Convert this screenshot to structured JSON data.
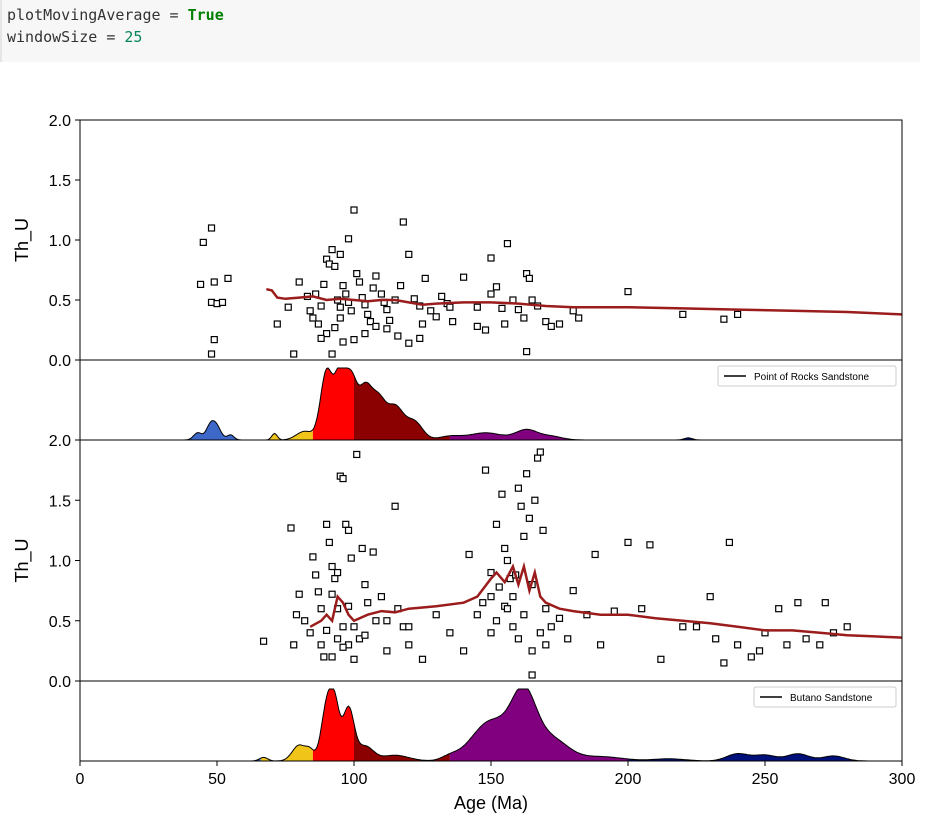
{
  "code": {
    "line1": {
      "var": "plotMovingAverage",
      "op": " = ",
      "val": "True"
    },
    "line2": {
      "var": "windowSize",
      "op": " = ",
      "val": "25"
    }
  },
  "colors": {
    "moving_average": "#9b1c1c",
    "kde_bands": [
      {
        "from": 0,
        "to": 66,
        "color": "#3e68c8"
      },
      {
        "from": 66,
        "to": 85,
        "color": "#f0c419"
      },
      {
        "from": 85,
        "to": 100,
        "color": "#ff0000"
      },
      {
        "from": 100,
        "to": 135,
        "color": "#8b0000"
      },
      {
        "from": 135,
        "to": 200,
        "color": "#800080"
      },
      {
        "from": 200,
        "to": 300,
        "color": "#00107a"
      }
    ]
  },
  "chart_data": [
    {
      "type": "scatter",
      "name": "Point of Rocks Sandstone",
      "ylabel": "Th_U",
      "xlim": [
        0,
        300
      ],
      "ylim": [
        0,
        2.0
      ],
      "yticks": [
        "0.0",
        "0.5",
        "1.0",
        "1.5",
        "2.0"
      ],
      "legend_label": "Point of Rocks Sandstone",
      "legend_placement": "upper-right of KDE panel",
      "moving_average": {
        "x": [
          68,
          70,
          72,
          75,
          80,
          85,
          90,
          95,
          100,
          105,
          110,
          115,
          120,
          125,
          130,
          140,
          150,
          160,
          170,
          180,
          200,
          220,
          240,
          260,
          280,
          300
        ],
        "y": [
          0.59,
          0.58,
          0.52,
          0.51,
          0.52,
          0.53,
          0.5,
          0.51,
          0.5,
          0.49,
          0.5,
          0.5,
          0.48,
          0.46,
          0.47,
          0.48,
          0.48,
          0.47,
          0.45,
          0.44,
          0.44,
          0.43,
          0.42,
          0.41,
          0.4,
          0.38
        ]
      },
      "points": [
        [
          45,
          0.98
        ],
        [
          48,
          1.1
        ],
        [
          44,
          0.63
        ],
        [
          49,
          0.65
        ],
        [
          48,
          0.48
        ],
        [
          50,
          0.47
        ],
        [
          52,
          0.48
        ],
        [
          54,
          0.68
        ],
        [
          49,
          0.17
        ],
        [
          48,
          0.05
        ],
        [
          72,
          0.3
        ],
        [
          76,
          0.44
        ],
        [
          80,
          0.65
        ],
        [
          83,
          0.53
        ],
        [
          84,
          0.41
        ],
        [
          86,
          0.55
        ],
        [
          88,
          0.45
        ],
        [
          87,
          0.3
        ],
        [
          89,
          0.63
        ],
        [
          90,
          0.84
        ],
        [
          91,
          0.8
        ],
        [
          92,
          0.92
        ],
        [
          93,
          0.78
        ],
        [
          94,
          0.5
        ],
        [
          95,
          0.44
        ],
        [
          95,
          0.88
        ],
        [
          96,
          0.62
        ],
        [
          97,
          0.55
        ],
        [
          98,
          0.48
        ],
        [
          99,
          0.41
        ],
        [
          100,
          1.25
        ],
        [
          98,
          1.01
        ],
        [
          101,
          0.72
        ],
        [
          102,
          0.65
        ],
        [
          103,
          0.52
        ],
        [
          104,
          0.46
        ],
        [
          105,
          0.38
        ],
        [
          106,
          0.32
        ],
        [
          107,
          0.6
        ],
        [
          108,
          0.7
        ],
        [
          110,
          0.55
        ],
        [
          111,
          0.48
        ],
        [
          112,
          0.42
        ],
        [
          113,
          0.33
        ],
        [
          115,
          0.5
        ],
        [
          117,
          0.62
        ],
        [
          118,
          1.15
        ],
        [
          120,
          0.88
        ],
        [
          122,
          0.51
        ],
        [
          124,
          0.45
        ],
        [
          126,
          0.68
        ],
        [
          128,
          0.41
        ],
        [
          130,
          0.36
        ],
        [
          132,
          0.53
        ],
        [
          134,
          0.47
        ],
        [
          136,
          0.32
        ],
        [
          140,
          0.69
        ],
        [
          145,
          0.44
        ],
        [
          148,
          0.25
        ],
        [
          150,
          0.85
        ],
        [
          152,
          0.61
        ],
        [
          154,
          0.43
        ],
        [
          156,
          0.97
        ],
        [
          158,
          0.5
        ],
        [
          160,
          0.42
        ],
        [
          162,
          0.35
        ],
        [
          163,
          0.72
        ],
        [
          164,
          0.68
        ],
        [
          165,
          0.5
        ],
        [
          167,
          0.45
        ],
        [
          170,
          0.32
        ],
        [
          172,
          0.28
        ],
        [
          175,
          0.3
        ],
        [
          180,
          0.41
        ],
        [
          182,
          0.35
        ],
        [
          95,
          0.35
        ],
        [
          93,
          0.27
        ],
        [
          90,
          0.22
        ],
        [
          88,
          0.18
        ],
        [
          85,
          0.35
        ],
        [
          78,
          0.05
        ],
        [
          92,
          0.05
        ],
        [
          96,
          0.15
        ],
        [
          100,
          0.17
        ],
        [
          104,
          0.22
        ],
        [
          108,
          0.28
        ],
        [
          112,
          0.26
        ],
        [
          116,
          0.2
        ],
        [
          120,
          0.14
        ],
        [
          124,
          0.18
        ],
        [
          200,
          0.57
        ],
        [
          220,
          0.38
        ],
        [
          235,
          0.34
        ],
        [
          240,
          0.38
        ],
        [
          163,
          0.07
        ],
        [
          145,
          0.28
        ],
        [
          155,
          0.3
        ],
        [
          150,
          0.55
        ],
        [
          135,
          0.44
        ],
        [
          125,
          0.3
        ]
      ]
    },
    {
      "type": "scatter",
      "name": "Butano Sandstone",
      "ylabel": "Th_U",
      "xlabel": "Age (Ma)",
      "xlim": [
        0,
        300
      ],
      "ylim": [
        0,
        2.0
      ],
      "xticks": [
        "0",
        "50",
        "100",
        "150",
        "200",
        "250",
        "300"
      ],
      "yticks": [
        "0.0",
        "0.5",
        "1.0",
        "1.5",
        "2.0"
      ],
      "legend_label": "Butano Sandstone",
      "legend_placement": "upper-right of KDE panel",
      "moving_average": {
        "x": [
          84,
          88,
          90,
          92,
          94,
          96,
          98,
          100,
          105,
          110,
          115,
          120,
          130,
          140,
          145,
          150,
          152,
          155,
          158,
          160,
          162,
          164,
          166,
          168,
          170,
          175,
          180,
          190,
          200,
          210,
          220,
          230,
          240,
          250,
          260,
          270,
          280,
          290,
          300
        ],
        "y": [
          0.45,
          0.5,
          0.55,
          0.5,
          0.7,
          0.65,
          0.55,
          0.5,
          0.55,
          0.58,
          0.57,
          0.6,
          0.62,
          0.65,
          0.7,
          0.85,
          0.9,
          0.82,
          0.95,
          0.8,
          0.95,
          0.75,
          0.9,
          0.7,
          0.65,
          0.6,
          0.58,
          0.55,
          0.55,
          0.52,
          0.5,
          0.48,
          0.45,
          0.42,
          0.42,
          0.4,
          0.38,
          0.37,
          0.36
        ]
      },
      "points": [
        [
          67,
          0.33
        ],
        [
          77,
          1.27
        ],
        [
          78,
          0.3
        ],
        [
          79,
          0.55
        ],
        [
          80,
          0.72
        ],
        [
          82,
          0.5
        ],
        [
          84,
          0.4
        ],
        [
          85,
          1.03
        ],
        [
          86,
          0.88
        ],
        [
          87,
          0.74
        ],
        [
          88,
          0.3
        ],
        [
          89,
          0.2
        ],
        [
          90,
          1.3
        ],
        [
          91,
          1.15
        ],
        [
          92,
          0.95
        ],
        [
          93,
          0.85
        ],
        [
          94,
          0.6
        ],
        [
          95,
          1.7
        ],
        [
          96,
          1.68
        ],
        [
          97,
          1.3
        ],
        [
          98,
          1.25
        ],
        [
          99,
          1.02
        ],
        [
          100,
          0.45
        ],
        [
          101,
          1.88
        ],
        [
          102,
          0.35
        ],
        [
          103,
          1.1
        ],
        [
          104,
          0.8
        ],
        [
          105,
          0.65
        ],
        [
          107,
          1.07
        ],
        [
          110,
          0.7
        ],
        [
          112,
          0.5
        ],
        [
          115,
          1.45
        ],
        [
          118,
          0.45
        ],
        [
          120,
          0.3
        ],
        [
          125,
          0.18
        ],
        [
          130,
          0.55
        ],
        [
          135,
          0.4
        ],
        [
          140,
          0.25
        ],
        [
          142,
          1.05
        ],
        [
          145,
          0.55
        ],
        [
          147,
          0.65
        ],
        [
          148,
          1.75
        ],
        [
          150,
          0.9
        ],
        [
          152,
          1.3
        ],
        [
          154,
          1.55
        ],
        [
          155,
          1.1
        ],
        [
          156,
          1.0
        ],
        [
          157,
          0.85
        ],
        [
          158,
          0.7
        ],
        [
          160,
          1.6
        ],
        [
          161,
          1.45
        ],
        [
          162,
          1.2
        ],
        [
          163,
          1.72
        ],
        [
          164,
          1.35
        ],
        [
          165,
          0.8
        ],
        [
          166,
          1.5
        ],
        [
          167,
          1.85
        ],
        [
          168,
          1.9
        ],
        [
          169,
          1.25
        ],
        [
          170,
          0.6
        ],
        [
          172,
          0.45
        ],
        [
          175,
          0.52
        ],
        [
          178,
          0.35
        ],
        [
          180,
          0.75
        ],
        [
          185,
          0.55
        ],
        [
          188,
          1.05
        ],
        [
          190,
          0.3
        ],
        [
          195,
          0.58
        ],
        [
          200,
          1.15
        ],
        [
          205,
          0.6
        ],
        [
          208,
          1.13
        ],
        [
          212,
          0.18
        ],
        [
          220,
          0.45
        ],
        [
          225,
          0.45
        ],
        [
          230,
          0.7
        ],
        [
          232,
          0.35
        ],
        [
          235,
          0.15
        ],
        [
          237,
          1.15
        ],
        [
          240,
          0.3
        ],
        [
          245,
          0.2
        ],
        [
          248,
          0.25
        ],
        [
          250,
          0.4
        ],
        [
          255,
          0.6
        ],
        [
          258,
          0.3
        ],
        [
          262,
          0.65
        ],
        [
          265,
          0.35
        ],
        [
          270,
          0.3
        ],
        [
          272,
          0.65
        ],
        [
          275,
          0.4
        ],
        [
          280,
          0.45
        ],
        [
          92,
          0.2
        ],
        [
          94,
          0.35
        ],
        [
          96,
          0.45
        ],
        [
          98,
          0.3
        ],
        [
          100,
          0.18
        ],
        [
          104,
          0.38
        ],
        [
          108,
          0.5
        ],
        [
          112,
          0.25
        ],
        [
          116,
          0.6
        ],
        [
          120,
          0.45
        ],
        [
          150,
          0.4
        ],
        [
          152,
          0.5
        ],
        [
          155,
          0.62
        ],
        [
          158,
          0.45
        ],
        [
          160,
          0.35
        ],
        [
          162,
          0.55
        ],
        [
          165,
          0.25
        ],
        [
          168,
          0.4
        ],
        [
          170,
          0.3
        ],
        [
          165,
          0.05
        ],
        [
          88,
          0.6
        ],
        [
          90,
          0.42
        ],
        [
          92,
          0.72
        ],
        [
          94,
          0.9
        ],
        [
          96,
          0.28
        ],
        [
          98,
          0.62
        ],
        [
          150,
          0.7
        ],
        [
          153,
          0.78
        ],
        [
          156,
          0.6
        ],
        [
          159,
          0.88
        ]
      ]
    }
  ],
  "kde": [
    {
      "name": "Point of Rocks Sandstone",
      "peaks": [
        {
          "mu": 43,
          "sd": 1.5,
          "h": 0.1
        },
        {
          "mu": 47,
          "sd": 1.2,
          "h": 0.06
        },
        {
          "mu": 49,
          "sd": 2.0,
          "h": 0.25
        },
        {
          "mu": 55,
          "sd": 1.2,
          "h": 0.07
        },
        {
          "mu": 71,
          "sd": 1.0,
          "h": 0.09
        },
        {
          "mu": 82,
          "sd": 3.0,
          "h": 0.12
        },
        {
          "mu": 90,
          "sd": 2.2,
          "h": 0.95
        },
        {
          "mu": 95,
          "sd": 2.0,
          "h": 0.9
        },
        {
          "mu": 99,
          "sd": 2.0,
          "h": 0.75
        },
        {
          "mu": 104,
          "sd": 2.5,
          "h": 0.7
        },
        {
          "mu": 109,
          "sd": 2.5,
          "h": 0.5
        },
        {
          "mu": 115,
          "sd": 3.0,
          "h": 0.45
        },
        {
          "mu": 122,
          "sd": 3.0,
          "h": 0.25
        },
        {
          "mu": 135,
          "sd": 4.0,
          "h": 0.05
        },
        {
          "mu": 148,
          "sd": 6.0,
          "h": 0.1
        },
        {
          "mu": 163,
          "sd": 4.0,
          "h": 0.14
        },
        {
          "mu": 172,
          "sd": 4.0,
          "h": 0.05
        },
        {
          "mu": 222,
          "sd": 1.5,
          "h": 0.03
        }
      ]
    },
    {
      "name": "Butano Sandstone",
      "peaks": [
        {
          "mu": 67,
          "sd": 1.5,
          "h": 0.05
        },
        {
          "mu": 80,
          "sd": 2.5,
          "h": 0.22
        },
        {
          "mu": 84,
          "sd": 1.5,
          "h": 0.12
        },
        {
          "mu": 90,
          "sd": 2.0,
          "h": 0.72
        },
        {
          "mu": 93,
          "sd": 1.8,
          "h": 0.7
        },
        {
          "mu": 98,
          "sd": 2.0,
          "h": 0.72
        },
        {
          "mu": 104,
          "sd": 3.0,
          "h": 0.2
        },
        {
          "mu": 115,
          "sd": 5.0,
          "h": 0.08
        },
        {
          "mu": 135,
          "sd": 3.0,
          "h": 0.05
        },
        {
          "mu": 150,
          "sd": 7.0,
          "h": 0.55
        },
        {
          "mu": 162,
          "sd": 4.5,
          "h": 0.85
        },
        {
          "mu": 172,
          "sd": 6.0,
          "h": 0.3
        },
        {
          "mu": 190,
          "sd": 8.0,
          "h": 0.06
        },
        {
          "mu": 215,
          "sd": 6.0,
          "h": 0.03
        },
        {
          "mu": 240,
          "sd": 4.0,
          "h": 0.1
        },
        {
          "mu": 250,
          "sd": 4.0,
          "h": 0.08
        },
        {
          "mu": 262,
          "sd": 4.0,
          "h": 0.1
        },
        {
          "mu": 275,
          "sd": 4.0,
          "h": 0.07
        }
      ]
    }
  ]
}
